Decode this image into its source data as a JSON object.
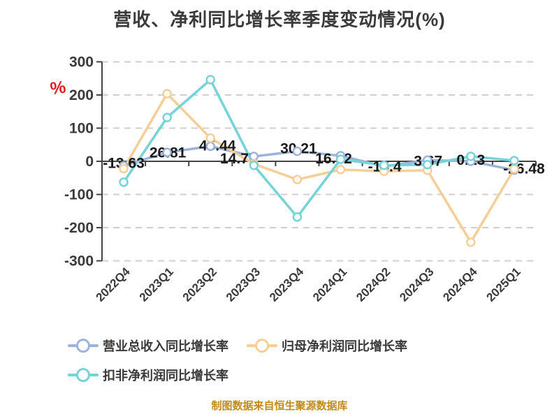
{
  "title": "营收、净利同比增长率季度变动情况(%)",
  "footer": {
    "text": "制图数据来自恒生聚源数据库",
    "color": "#c18a1b"
  },
  "y_axis": {
    "unit": "%",
    "unit_color": "#df1f1f",
    "tick_values": [
      300,
      200,
      100,
      0,
      -100,
      -200,
      -300
    ],
    "tick_labels": [
      "300",
      "200",
      "100",
      "0",
      "-100",
      "-200",
      "-300"
    ]
  },
  "chart_data": {
    "type": "line",
    "title": "营收、净利同比增长率季度变动情况(%)",
    "categories": [
      "2022Q4",
      "2023Q1",
      "2023Q2",
      "2023Q3",
      "2023Q4",
      "2024Q1",
      "2024Q2",
      "2024Q3",
      "2024Q4",
      "2025Q1"
    ],
    "series": [
      {
        "key": "revenue",
        "name": "营业总收入同比增长率",
        "color": "#9db3db",
        "values": [
          -13.63,
          26.81,
          45.44,
          14.77,
          30.21,
          16.72,
          -15.4,
          3.67,
          0.13,
          -26.48
        ],
        "point_labels": [
          "-13.63",
          "26.81",
          "45.44",
          "14.77",
          "30.21",
          "16.72",
          "-15.4",
          "3.67",
          "0.13",
          "-26.48"
        ],
        "labels_shown": true
      },
      {
        "key": "net-profit",
        "name": "归母净利润同比增长率",
        "color": "#f5ce98",
        "values": [
          -22,
          204,
          70,
          -8,
          -55,
          -25,
          -30,
          -27,
          -244,
          -23
        ],
        "labels_shown": false
      },
      {
        "key": "non-gaap-net-profit",
        "name": "扣非净利润同比增长率",
        "color": "#76d3d8",
        "values": [
          -63,
          132,
          246,
          -12,
          -168,
          6,
          -12,
          -10,
          15,
          2
        ],
        "labels_shown": false
      }
    ],
    "ylim": [
      -300,
      300
    ],
    "y_ticks": [
      300,
      200,
      100,
      0,
      -100,
      -200,
      -300
    ],
    "grid": "dashed-horizontal",
    "legend_position": "bottom",
    "x_label_rotation": 45
  },
  "style": {
    "grid_color": "#cfcfcf",
    "axis_color": "#444444",
    "tick_label_color": "#3a3a3a",
    "data_label_color": "#1a1a1a",
    "marker_fill": "#ffffff"
  }
}
